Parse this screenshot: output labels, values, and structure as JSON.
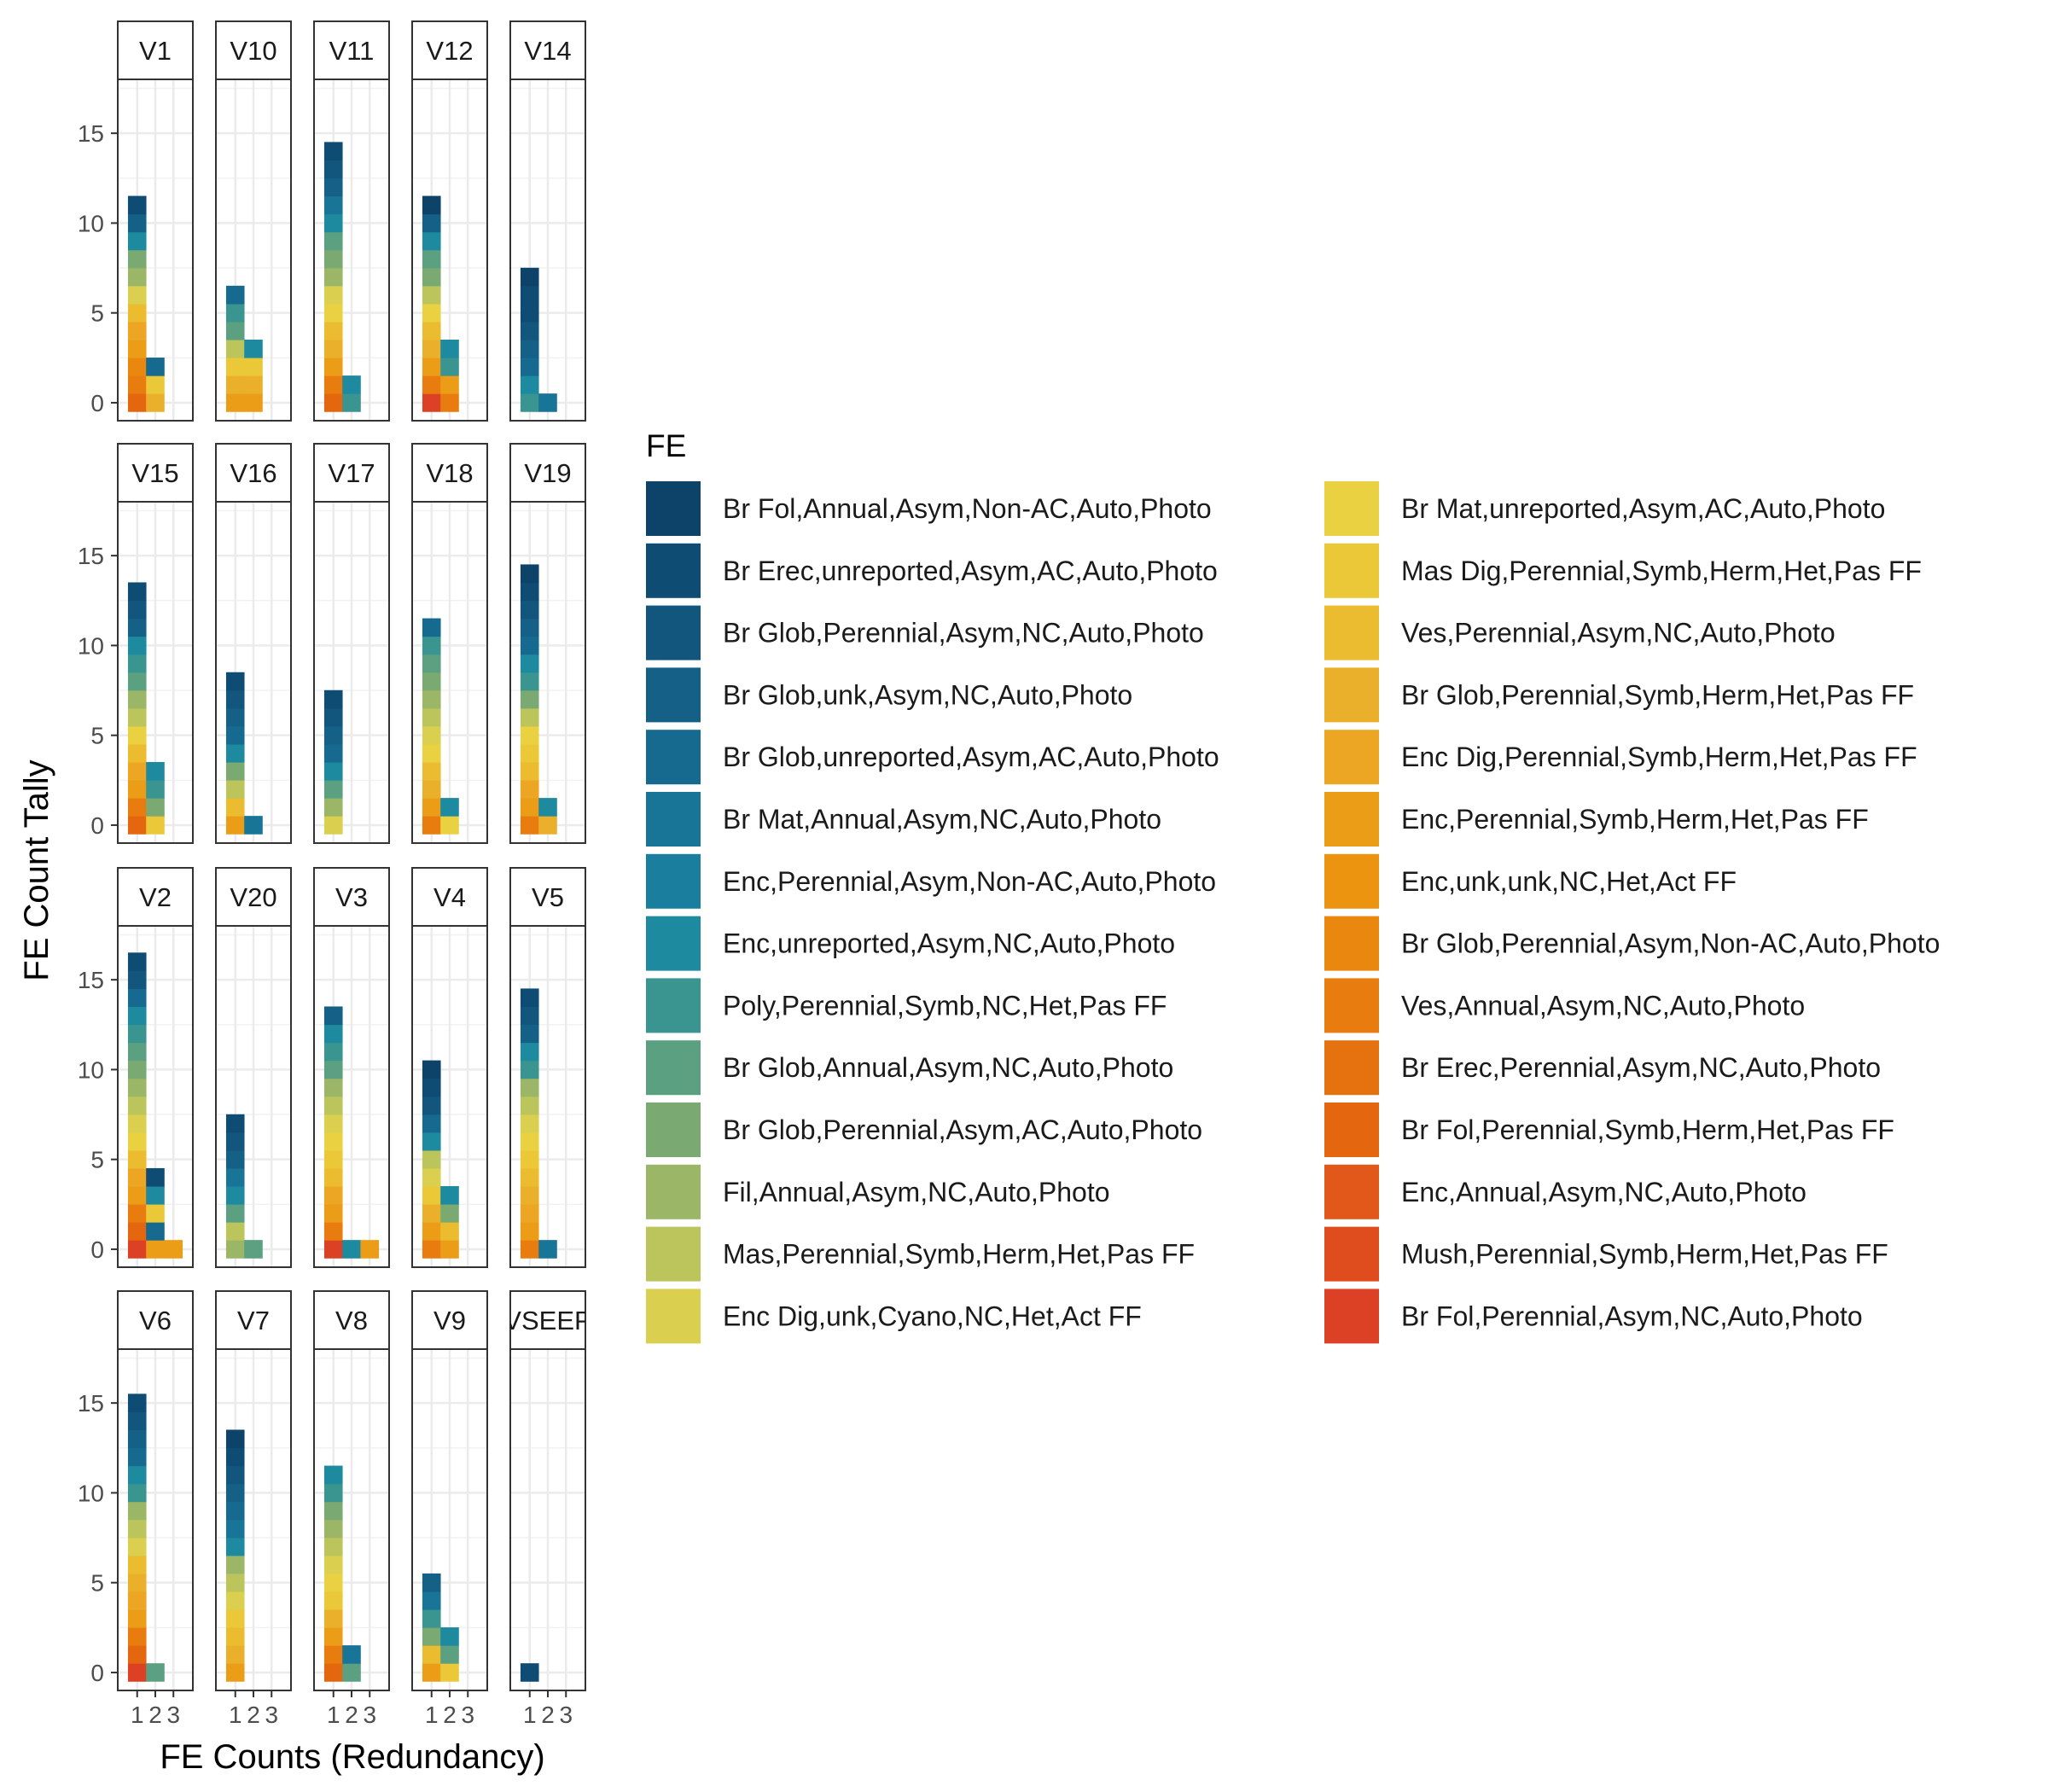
{
  "chart_data": {
    "type": "bar",
    "subtype": "faceted stacked dot-bar (tally)",
    "title": "",
    "xlabel": "FE Counts (Redundancy)",
    "ylabel": "FE Count Tally",
    "x_ticks": [
      1,
      2,
      3
    ],
    "y_ticks": [
      0,
      5,
      10,
      15
    ],
    "ylim": [
      0,
      18
    ],
    "grid": true,
    "legend_title": "FE",
    "legend_position": "right",
    "fe_types": [
      {
        "name": "Br Fol,Annual,Asym,Non-AC,Auto,Photo",
        "color": "#0d4269"
      },
      {
        "name": "Br Erec,unreported,Asym,AC,Auto,Photo",
        "color": "#0f4c74"
      },
      {
        "name": "Br Glob,Perennial,Asym,NC,Auto,Photo",
        "color": "#12567e"
      },
      {
        "name": "Br Glob,unk,Asym,NC,Auto,Photo",
        "color": "#146087"
      },
      {
        "name": "Br Glob,unreported,Asym,AC,Auto,Photo",
        "color": "#166a90"
      },
      {
        "name": "Br Mat,Annual,Asym,NC,Auto,Photo",
        "color": "#187598"
      },
      {
        "name": "Enc,Perennial,Asym,Non-AC,Auto,Photo",
        "color": "#1a7f9e"
      },
      {
        "name": "Enc,unreported,Asym,NC,Auto,Photo",
        "color": "#1d8aa0"
      },
      {
        "name": "Poly,Perennial,Symb,NC,Het,Pas FF",
        "color": "#3a9490"
      },
      {
        "name": "Br Glob,Annual,Asym,NC,Auto,Photo",
        "color": "#5aa081"
      },
      {
        "name": "Br Glob,Perennial,Asym,AC,Auto,Photo",
        "color": "#7aaa72"
      },
      {
        "name": "Fil,Annual,Asym,NC,Auto,Photo",
        "color": "#9bb666"
      },
      {
        "name": "Mas,Perennial,Symb,Herm,Het,Pas FF",
        "color": "#bcc45c"
      },
      {
        "name": "Enc Dig,unk,Cyano,NC,Het,Act FF",
        "color": "#dbcf4f"
      },
      {
        "name": "Br Mat,unreported,Asym,AC,Auto,Photo",
        "color": "#ead141"
      },
      {
        "name": "Mas Dig,Perennial,Symb,Herm,Het,Pas FF",
        "color": "#ebc838"
      },
      {
        "name": "Ves,Perennial,Asym,NC,Auto,Photo",
        "color": "#ebbc30"
      },
      {
        "name": "Br Glob,Perennial,Symb,Herm,Het,Pas FF",
        "color": "#ebb02b"
      },
      {
        "name": "Enc Dig,Perennial,Symb,Herm,Het,Pas FF",
        "color": "#eca624"
      },
      {
        "name": "Enc,Perennial,Symb,Herm,Het,Pas FF",
        "color": "#ec9d18"
      },
      {
        "name": "Enc,unk,unk,NC,Het,Act FF",
        "color": "#ec930f"
      },
      {
        "name": "Br Glob,Perennial,Asym,Non-AC,Auto,Photo",
        "color": "#ea870e"
      },
      {
        "name": "Ves,Annual,Asym,NC,Auto,Photo",
        "color": "#e87c0f"
      },
      {
        "name": "Br Erec,Perennial,Asym,NC,Auto,Photo",
        "color": "#e6720f"
      },
      {
        "name": "Br Fol,Perennial,Symb,Herm,Het,Pas FF",
        "color": "#e4660f"
      },
      {
        "name": "Enc,Annual,Asym,NC,Auto,Photo",
        "color": "#e1581a"
      },
      {
        "name": "Mush,Perennial,Symb,Herm,Het,Pas FF",
        "color": "#df4c1e"
      },
      {
        "name": "Br Fol,Perennial,Asym,NC,Auto,Photo",
        "color": "#dc4125"
      }
    ],
    "panels": [
      {
        "label": "V1",
        "stacks": [
          {
            "x": 1,
            "colors": [
              "#e4660f",
              "#e87c0f",
              "#ea870e",
              "#ec9d18",
              "#eca624",
              "#ebbc30",
              "#dbcf4f",
              "#9bb666",
              "#7aaa72",
              "#1d8aa0",
              "#146087",
              "#0f4c74"
            ]
          },
          {
            "x": 2,
            "colors": [
              "#ebb02b",
              "#ebc838",
              "#166a90"
            ]
          }
        ]
      },
      {
        "label": "V10",
        "stacks": [
          {
            "x": 1,
            "colors": [
              "#ec9d18",
              "#ebb02b",
              "#ebc838",
              "#bcc45c",
              "#5aa081",
              "#3a9490",
              "#166a90"
            ]
          },
          {
            "x": 2,
            "colors": [
              "#ec9d18",
              "#ebb02b",
              "#ebc838",
              "#1d8aa0"
            ]
          }
        ]
      },
      {
        "label": "V11",
        "stacks": [
          {
            "x": 1,
            "colors": [
              "#e4660f",
              "#e87c0f",
              "#ec9d18",
              "#ebb02b",
              "#ebbc30",
              "#ead141",
              "#dbcf4f",
              "#9bb666",
              "#7aaa72",
              "#5aa081",
              "#1d8aa0",
              "#187598",
              "#146087",
              "#12567e",
              "#0f4c74"
            ]
          },
          {
            "x": 2,
            "colors": [
              "#3a9490",
              "#1d8aa0"
            ]
          }
        ]
      },
      {
        "label": "V12",
        "stacks": [
          {
            "x": 1,
            "colors": [
              "#dc4125",
              "#e87c0f",
              "#ec9d18",
              "#ebb02b",
              "#ebbc30",
              "#ead141",
              "#bcc45c",
              "#7aaa72",
              "#5aa081",
              "#1d8aa0",
              "#146087",
              "#0d4269"
            ]
          },
          {
            "x": 2,
            "colors": [
              "#e87c0f",
              "#ec9d18",
              "#3a9490",
              "#1d8aa0"
            ]
          }
        ]
      },
      {
        "label": "V14",
        "stacks": [
          {
            "x": 1,
            "colors": [
              "#3a9490",
              "#1d8aa0",
              "#166a90",
              "#146087",
              "#12567e",
              "#0f4c74",
              "#0f4c74",
              "#0d4269"
            ]
          },
          {
            "x": 2,
            "colors": [
              "#187598"
            ]
          }
        ]
      },
      {
        "label": "V15",
        "stacks": [
          {
            "x": 1,
            "colors": [
              "#e4660f",
              "#e87c0f",
              "#ec9d18",
              "#eca624",
              "#ebbc30",
              "#ead141",
              "#bcc45c",
              "#9bb666",
              "#5aa081",
              "#3a9490",
              "#1d8aa0",
              "#146087",
              "#12567e",
              "#0f4c74"
            ]
          },
          {
            "x": 2,
            "colors": [
              "#ebc838",
              "#7aaa72",
              "#3a9490",
              "#1d8aa0"
            ]
          }
        ]
      },
      {
        "label": "V16",
        "stacks": [
          {
            "x": 1,
            "colors": [
              "#ec9d18",
              "#ebbc30",
              "#bcc45c",
              "#7aaa72",
              "#1d8aa0",
              "#166a90",
              "#146087",
              "#12567e",
              "#0f4c74"
            ]
          },
          {
            "x": 2,
            "colors": [
              "#187598"
            ]
          }
        ]
      },
      {
        "label": "V17",
        "stacks": [
          {
            "x": 1,
            "colors": [
              "#dbcf4f",
              "#9bb666",
              "#5aa081",
              "#1d8aa0",
              "#166a90",
              "#146087",
              "#12567e",
              "#0f4c74"
            ]
          }
        ]
      },
      {
        "label": "V18",
        "stacks": [
          {
            "x": 1,
            "colors": [
              "#e87c0f",
              "#ec9d18",
              "#ebb02b",
              "#ebbc30",
              "#ead141",
              "#dbcf4f",
              "#bcc45c",
              "#9bb666",
              "#7aaa72",
              "#5aa081",
              "#3a9490",
              "#166a90"
            ]
          },
          {
            "x": 2,
            "colors": [
              "#ead141",
              "#1d8aa0"
            ]
          }
        ]
      },
      {
        "label": "V19",
        "stacks": [
          {
            "x": 1,
            "colors": [
              "#e87c0f",
              "#ec9d18",
              "#eca624",
              "#ebbc30",
              "#ebc838",
              "#ead141",
              "#bcc45c",
              "#7aaa72",
              "#3a9490",
              "#1d8aa0",
              "#166a90",
              "#146087",
              "#12567e",
              "#0f4c74",
              "#0d4269"
            ]
          },
          {
            "x": 2,
            "colors": [
              "#ebb02b",
              "#1d8aa0"
            ]
          }
        ]
      },
      {
        "label": "V2",
        "stacks": [
          {
            "x": 1,
            "colors": [
              "#dc4125",
              "#e4660f",
              "#e87c0f",
              "#ec9d18",
              "#eca624",
              "#ebbc30",
              "#ead141",
              "#dbcf4f",
              "#bcc45c",
              "#9bb666",
              "#7aaa72",
              "#5aa081",
              "#3a9490",
              "#1d8aa0",
              "#166a90",
              "#12567e",
              "#0f4c74"
            ]
          },
          {
            "x": 2,
            "colors": [
              "#ec9d18",
              "#166a90",
              "#ebc838",
              "#1d8aa0",
              "#0f4c74"
            ]
          },
          {
            "x": 3,
            "colors": [
              "#ec9d18"
            ]
          }
        ]
      },
      {
        "label": "V20",
        "stacks": [
          {
            "x": 1,
            "colors": [
              "#9bb666",
              "#bcc45c",
              "#5aa081",
              "#1d8aa0",
              "#187598",
              "#146087",
              "#12567e",
              "#0f4c74"
            ]
          },
          {
            "x": 2,
            "colors": [
              "#5aa081"
            ]
          }
        ]
      },
      {
        "label": "V3",
        "stacks": [
          {
            "x": 1,
            "colors": [
              "#dc4125",
              "#e87c0f",
              "#ec9d18",
              "#eca624",
              "#ebbc30",
              "#ebc838",
              "#ead141",
              "#dbcf4f",
              "#bcc45c",
              "#9bb666",
              "#5aa081",
              "#3a9490",
              "#1d8aa0",
              "#146087"
            ]
          },
          {
            "x": 2,
            "colors": [
              "#1d8aa0"
            ]
          },
          {
            "x": 3,
            "colors": [
              "#ec9d18"
            ]
          }
        ]
      },
      {
        "label": "V4",
        "stacks": [
          {
            "x": 1,
            "colors": [
              "#e87c0f",
              "#ec9d18",
              "#ebb02b",
              "#ebc838",
              "#dbcf4f",
              "#bcc45c",
              "#1d8aa0",
              "#166a90",
              "#12567e",
              "#0f4c74",
              "#0d4269"
            ]
          },
          {
            "x": 2,
            "colors": [
              "#ec9d18",
              "#ebbc30",
              "#7aaa72",
              "#1d8aa0"
            ]
          }
        ]
      },
      {
        "label": "V5",
        "stacks": [
          {
            "x": 1,
            "colors": [
              "#e87c0f",
              "#ec9d18",
              "#eca624",
              "#ebb02b",
              "#ebbc30",
              "#ebc838",
              "#ead141",
              "#dbcf4f",
              "#bcc45c",
              "#9bb666",
              "#3a9490",
              "#1d8aa0",
              "#146087",
              "#12567e",
              "#0f4c74"
            ]
          },
          {
            "x": 2,
            "colors": [
              "#187598"
            ]
          }
        ]
      },
      {
        "label": "V6",
        "stacks": [
          {
            "x": 1,
            "colors": [
              "#dc4125",
              "#e4660f",
              "#e87c0f",
              "#ec9d18",
              "#eca624",
              "#ebb02b",
              "#ebbc30",
              "#dbcf4f",
              "#bcc45c",
              "#9bb666",
              "#3a9490",
              "#1d8aa0",
              "#166a90",
              "#146087",
              "#12567e",
              "#0f4c74"
            ]
          },
          {
            "x": 2,
            "colors": [
              "#5aa081"
            ]
          }
        ]
      },
      {
        "label": "V7",
        "stacks": [
          {
            "x": 1,
            "colors": [
              "#ec9d18",
              "#ebb02b",
              "#ebbc30",
              "#ebc838",
              "#dbcf4f",
              "#bcc45c",
              "#9bb666",
              "#1d8aa0",
              "#187598",
              "#166a90",
              "#146087",
              "#12567e",
              "#0f4c74",
              "#0d4269"
            ]
          }
        ]
      },
      {
        "label": "V8",
        "stacks": [
          {
            "x": 1,
            "colors": [
              "#e4660f",
              "#e87c0f",
              "#ec9d18",
              "#ebb02b",
              "#ebc838",
              "#ead141",
              "#dbcf4f",
              "#bcc45c",
              "#9bb666",
              "#7aaa72",
              "#3a9490",
              "#1d8aa0"
            ]
          },
          {
            "x": 2,
            "colors": [
              "#5aa081",
              "#187598"
            ]
          }
        ]
      },
      {
        "label": "V9",
        "stacks": [
          {
            "x": 1,
            "colors": [
              "#ec9d18",
              "#ebbc30",
              "#7aaa72",
              "#3a9490",
              "#187598",
              "#146087"
            ]
          },
          {
            "x": 2,
            "colors": [
              "#ebc838",
              "#5aa081",
              "#1d8aa0"
            ]
          }
        ]
      },
      {
        "label": "VSEEP",
        "stacks": [
          {
            "x": 1,
            "colors": [
              "#0f4c74"
            ]
          }
        ]
      }
    ]
  }
}
